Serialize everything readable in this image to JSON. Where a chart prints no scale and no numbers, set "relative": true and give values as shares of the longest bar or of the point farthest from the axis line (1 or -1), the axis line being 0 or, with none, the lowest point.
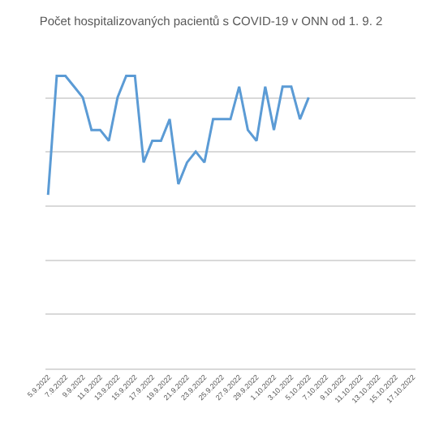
{
  "chart_data": {
    "type": "line",
    "title": "Počet hospitalizovaných pacientů s COVID-19 v ONN od 1. 9. 2",
    "relative": true,
    "grid": "y",
    "marker": "none",
    "line_style": "solid",
    "categories": [
      "5.9.2022",
      null,
      "7.9.2022",
      null,
      "9.9.2022",
      null,
      "11.9.2022",
      null,
      "13.9.2022",
      null,
      "15.9.2022",
      null,
      "17.9.2022",
      null,
      "19.9.2022",
      null,
      "21.9.2022",
      null,
      "23.9.2022",
      null,
      "25.9.2022",
      null,
      "27.9.2022",
      null,
      "29.9.2022",
      null,
      "1.10.2022",
      null,
      "3.10.2022",
      null,
      "5.10.2022",
      null,
      "7.10.2022",
      null,
      "9.10.2022",
      null,
      "11.10.2022",
      null,
      "13.10.2022",
      null,
      "15.10.2022",
      null,
      "17.10.2022"
    ],
    "series": [
      {
        "color": "#5b9bd5",
        "values": [
          0.593,
          1,
          1,
          0.963,
          0.926,
          0.815,
          0.815,
          0.778,
          0.926,
          1,
          1,
          0.704,
          0.778,
          0.778,
          0.852,
          0.63,
          0.704,
          0.741,
          0.704,
          0.852,
          0.852,
          0.852,
          0.963,
          0.815,
          0.778,
          0.963,
          0.815,
          0.963,
          0.963,
          0.852,
          0.926,
          null,
          null,
          null,
          null,
          null,
          null,
          null,
          null,
          null,
          null,
          null,
          null
        ]
      }
    ]
  }
}
